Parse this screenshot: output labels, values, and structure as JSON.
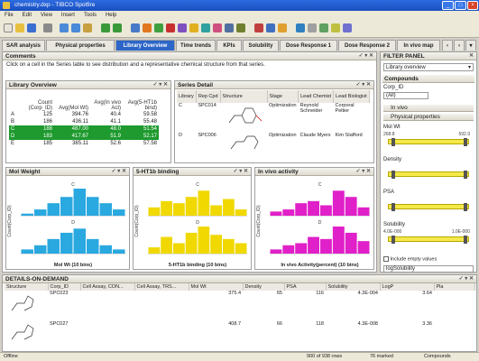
{
  "window": {
    "title": "chemistry.dxp - TIBCO Spotfire"
  },
  "menu": [
    "File",
    "Edit",
    "View",
    "Insert",
    "Tools",
    "Help"
  ],
  "tabs": [
    "SAR analysis",
    "Physical properties",
    "Library Overview",
    "Time trends",
    "KPIs",
    "Solubility",
    "Dose Response 1",
    "Dose Response 2",
    "In vivo map"
  ],
  "active_tab": 2,
  "comments": {
    "title": "Comments",
    "text": "Click on a cell in the Series table to see distribution and a representative chemical structure from that series."
  },
  "library": {
    "title": "Library Overview",
    "headers": [
      "",
      "Count (Corp_ID)",
      "Avg(Mol Wt)",
      "Avg(In vivo Act)",
      "Avg(5-HT1b bind)"
    ],
    "rows": [
      {
        "label": "A",
        "count": "125",
        "mw": "394.76",
        "act": "40.4",
        "bind": "59.58",
        "selected": false
      },
      {
        "label": "B",
        "count": "186",
        "mw": "436.11",
        "act": "41.1",
        "bind": "55.48",
        "selected": false
      },
      {
        "label": "C",
        "count": "188",
        "mw": "487.00",
        "act": "48.0",
        "bind": "51.54",
        "selected": true
      },
      {
        "label": "D",
        "count": "183",
        "mw": "417.67",
        "act": "51.9",
        "bind": "52.17",
        "selected": true
      },
      {
        "label": "E",
        "count": "185",
        "mw": "385.11",
        "act": "52.6",
        "bind": "57.58",
        "selected": false
      }
    ]
  },
  "series": {
    "title": "Series Detail",
    "headers": [
      "Library",
      "Rep Cpd",
      "Structure",
      "Stage",
      "Lead Chemist",
      "Lead Biologist"
    ],
    "rows": [
      {
        "library": "C",
        "cpd": "SPC014",
        "stage": "Optimization",
        "chemist": "Reynold Schneider",
        "biologist": "Corporal Peltier"
      },
      {
        "library": "D",
        "cpd": "SPC006",
        "stage": "Optimization",
        "chemist": "Claude Myers",
        "biologist": "Kim Stafford"
      }
    ]
  },
  "charts": {
    "mw": {
      "title": "Mol Weight",
      "xlabel": "Mol Wt (10 bins)",
      "ylabel": "Count(Corp_ID)",
      "color": "#2aa8e0",
      "chart_data": {
        "type": "bar",
        "panels": [
          "C",
          "D"
        ],
        "series": [
          {
            "name": "C",
            "values": [
              1,
              3,
              6,
              9,
              13,
              9,
              6,
              3
            ]
          },
          {
            "name": "D",
            "values": [
              2,
              4,
              7,
              10,
              12,
              7,
              4,
              2
            ]
          }
        ]
      }
    },
    "bind": {
      "title": "5-HT1b binding",
      "xlabel": "5-HT1b binding (10 bins)",
      "ylabel": "Count(Corp_ID)",
      "color": "#f0d800",
      "chart_data": {
        "type": "bar",
        "panels": [
          "C",
          "D"
        ],
        "series": [
          {
            "name": "C",
            "values": [
              4,
              7,
              6,
              9,
              12,
              5,
              8,
              3
            ]
          },
          {
            "name": "D",
            "values": [
              3,
              8,
              5,
              10,
              13,
              9,
              7,
              5
            ]
          }
        ]
      }
    },
    "invivo": {
      "title": "In vivo activity",
      "xlabel": "In vivo Activity(percent) (10 bins)",
      "ylabel": "Count(Corp_ID)",
      "color": "#e020c8",
      "chart_data": {
        "type": "bar",
        "panels": [
          "C",
          "D"
        ],
        "series": [
          {
            "name": "C",
            "values": [
              2,
              3,
              6,
              7,
              5,
              12,
              9,
              4
            ]
          },
          {
            "name": "D",
            "values": [
              2,
              4,
              5,
              8,
              7,
              13,
              10,
              6
            ]
          }
        ]
      }
    }
  },
  "filter": {
    "title": "FILTER PANEL",
    "dropdown": "Library overview",
    "section": "Compounds",
    "corp_id_label": "Corp_ID",
    "all_label": "(All)",
    "group_invivo": "In vivo",
    "group_phys": "Physical properties",
    "sliders": [
      {
        "label": "Mol Wt",
        "min": "268.8",
        "max": "592.9",
        "left": 0.04,
        "right": 0.96
      },
      {
        "label": "Density",
        "min": "",
        "max": "",
        "left": 0.04,
        "right": 0.96
      },
      {
        "label": "PSA",
        "min": "",
        "max": "",
        "left": 0.04,
        "right": 0.96
      },
      {
        "label": "Solubility",
        "min": "4.0E-000",
        "max": "1.0E-000",
        "left": 0.04,
        "right": 0.96
      }
    ],
    "include_empty": "Include empty values",
    "last": "logSolubility"
  },
  "details": {
    "title": "DETAILS-ON-DEMAND",
    "headers": [
      "Structure",
      "Corp_ID",
      "Cell Assay, CON...",
      "Cell Assay, TRS...",
      "Mol Wt",
      "Density",
      "PSA",
      "Solubility",
      "LogP",
      "Pla"
    ],
    "rows": [
      {
        "corp": "SPC023",
        "mw": "375.4",
        "density": "65",
        "psa": "116",
        "sol": "4.3E-004",
        "logp": "3.64"
      },
      {
        "corp": "SPC027",
        "mw": "408.7",
        "density": "66",
        "psa": "118",
        "sol": "4.3E-008",
        "logp": "3.36"
      }
    ]
  },
  "status": {
    "left": "Offline",
    "middle": "900 of 938 rows",
    "marked": "76 marked",
    "right": "Compounds"
  }
}
